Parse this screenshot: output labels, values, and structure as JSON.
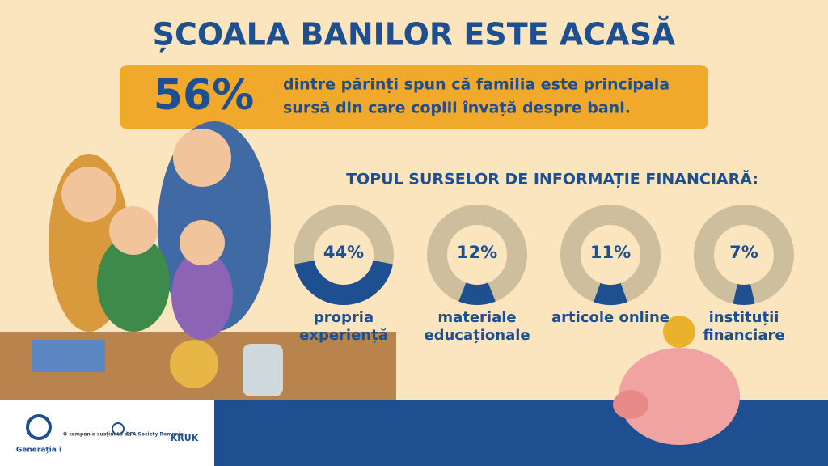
{
  "title": "ȘCOALA BANILOR ESTE ACASĂ",
  "highlight": {
    "stat": "56%",
    "text_lines": [
      "dintre părinți spun că familia este principala",
      "sursă din care copiii învață despre bani."
    ]
  },
  "chart_data": {
    "type": "donut",
    "title": "TOPUL SURSELOR DE INFORMAȚIE FINANCIARĂ:",
    "categories": [
      "propria experiență",
      "materiale educaționale",
      "articole online",
      "instituții financiare"
    ],
    "values": [
      44,
      12,
      11,
      7
    ],
    "value_labels": [
      "44%",
      "12%",
      "11%",
      "7%"
    ],
    "color": "#1d4f91",
    "track_color": "#cdbf9e"
  },
  "footer": {
    "brand": "Generația i",
    "campaign_note": "O campanie susținută de",
    "partner_1": "CFA Society Romania",
    "partner_2": "KRUK"
  }
}
